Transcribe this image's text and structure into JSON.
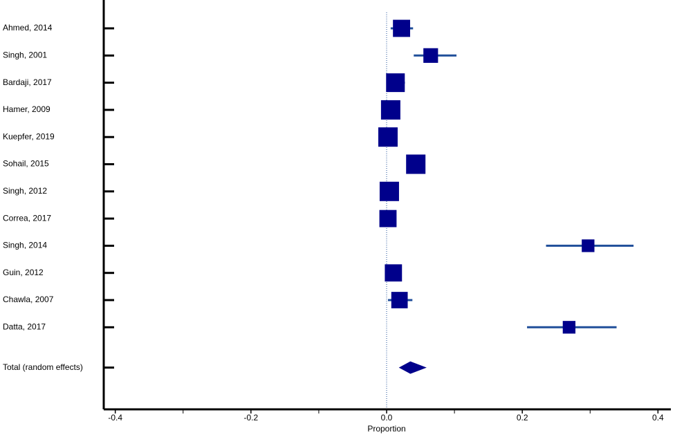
{
  "chart_data": {
    "type": "forest",
    "x_label": "Proportion",
    "studies": [
      "Ahmed, 2014",
      "Singh, 2001",
      "Bardaji, 2017",
      "Hamer, 2009",
      "Kuepfer, 2019",
      "Sohail, 2015",
      "Singh, 2012",
      "Correa, 2017",
      "Singh, 2014",
      "Guin, 2012",
      "Chawla, 2007",
      "Datta, 2017"
    ],
    "estimates": [
      0.022,
      0.065,
      0.013,
      0.006,
      0.002,
      0.043,
      0.004,
      0.002,
      0.297,
      0.01,
      0.019,
      0.269
    ],
    "ci_lower": [
      0.006,
      0.04,
      0.0,
      -0.006,
      -0.01,
      0.03,
      -0.008,
      -0.006,
      0.235,
      -0.002,
      0.002,
      0.207
    ],
    "ci_upper": [
      0.039,
      0.103,
      0.027,
      0.018,
      0.014,
      0.056,
      0.016,
      0.01,
      0.364,
      0.022,
      0.038,
      0.339
    ],
    "weights": [
      9.2,
      6.7,
      10.9,
      11.7,
      11.7,
      11.7,
      11.7,
      9.2,
      5.0,
      9.2,
      8.4,
      5.0
    ],
    "total": {
      "label": "Total (random effects)",
      "estimate": 0.035,
      "ci_lower": 0.018,
      "ci_upper": 0.059
    },
    "color": "#00008b",
    "ci_color": "#1f4e99",
    "xlim": [
      -0.417,
      0.419
    ],
    "xticks": [
      -0.4,
      -0.2,
      {
        "value": 0,
        "label": "0.0"
      },
      0.2,
      0.4
    ],
    "xminor_ticks": [
      -0.3,
      -0.1,
      0.1,
      0.3
    ]
  }
}
